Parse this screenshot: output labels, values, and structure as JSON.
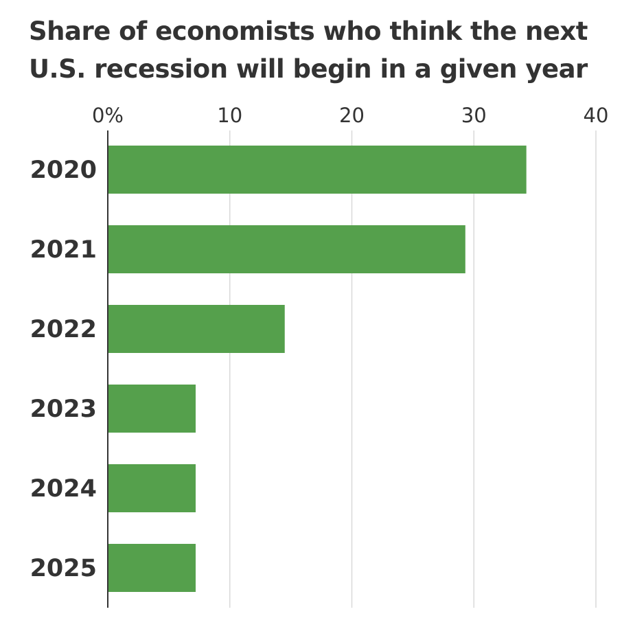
{
  "chart_data": {
    "type": "bar",
    "orientation": "horizontal",
    "title": "Share of economists who think the next U.S. recession will begin in a given year",
    "categories": [
      "2020",
      "2021",
      "2022",
      "2023",
      "2024",
      "2025"
    ],
    "values": [
      34.3,
      29.3,
      14.5,
      7.2,
      7.2,
      7.2
    ],
    "x_ticks": [
      "0%",
      "10",
      "20",
      "30",
      "40"
    ],
    "x_tick_values": [
      0,
      10,
      20,
      30,
      40
    ],
    "xlim": [
      0,
      40
    ],
    "grid": true,
    "bar_color": "#55a04c",
    "grid_color": "#d9d9d9",
    "axis_color": "#333333"
  }
}
